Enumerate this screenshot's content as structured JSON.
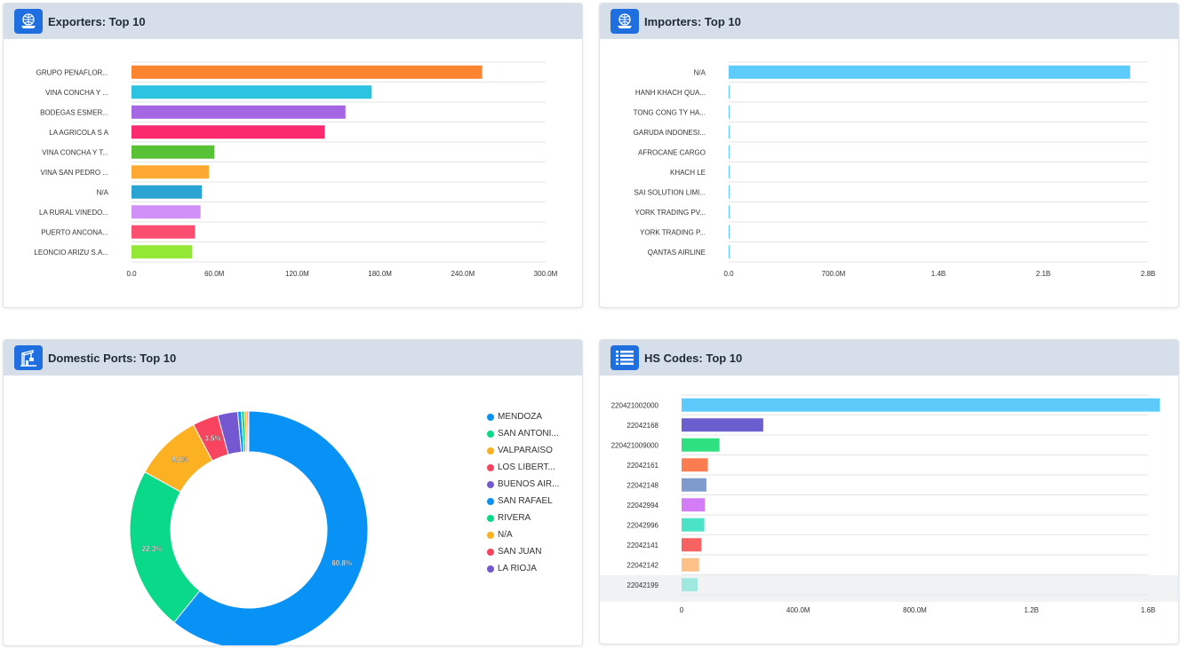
{
  "panels": {
    "exporters": {
      "title": "Exporters: Top 10"
    },
    "importers": {
      "title": "Importers: Top 10"
    },
    "ports": {
      "title": "Domestic Ports: Top 10"
    },
    "hs": {
      "title": "HS Codes: Top 10"
    }
  },
  "chart_data": [
    {
      "id": "exporters",
      "type": "bar",
      "orientation": "horizontal",
      "categories": [
        "GRUPO PENAFLOR...",
        "VINA CONCHA Y ...",
        "BODEGAS ESMER...",
        "LA AGRICOLA S A",
        "VINA CONCHA Y T...",
        "VINA SAN PEDRO ...",
        "N/A",
        "LA RURAL VINEDO...",
        "PUERTO ANCONA...",
        "LEONCIO ARIZU S.A..."
      ],
      "values": [
        254,
        174,
        155,
        140,
        60,
        56,
        51,
        50,
        46,
        44
      ],
      "colors": [
        "#fd8431",
        "#2bc3df",
        "#a566e3",
        "#fb2a6e",
        "#57c236",
        "#fda931",
        "#2ba4d3",
        "#d090f8",
        "#fb4e71",
        "#93e735"
      ],
      "xlim": [
        0,
        300
      ],
      "xticks": [
        "0.0",
        "60.0M",
        "120.0M",
        "180.0M",
        "240.0M",
        "300.0M"
      ],
      "unit": "M"
    },
    {
      "id": "importers",
      "type": "bar",
      "orientation": "horizontal",
      "categories": [
        "N/A",
        "HANH KHACH QUA...",
        "TONG CONG TY HA...",
        "GARUDA INDONESI...",
        "AFROCANE CARGO",
        "KHACH LE",
        "SAI SOLUTION LIMI...",
        "YORK TRADING PV...",
        "YORK TRADING P...",
        "QANTAS AIRLINE"
      ],
      "values": [
        2.68,
        0.002,
        0.002,
        0.002,
        0.002,
        0.002,
        0.001,
        0.001,
        0.001,
        0.001
      ],
      "colors": [
        "#5dcbfb",
        "#5dcbfb",
        "#5dcbfb",
        "#5dcbfb",
        "#5dcbfb",
        "#5dcbfb",
        "#5dcbfb",
        "#5dcbfb",
        "#5dcbfb",
        "#5dcbfb"
      ],
      "xlim": [
        0,
        2.8
      ],
      "xticks": [
        "0.0",
        "700.0M",
        "1.4B",
        "2.1B",
        "2.8B"
      ],
      "unit": "B"
    },
    {
      "id": "ports",
      "type": "pie",
      "donut": true,
      "labels": [
        "MENDOZA",
        "SAN ANTONI...",
        "VALPARAISO",
        "LOS LIBERT...",
        "BUENOS AIR...",
        "SAN RAFAEL",
        "RIVERA",
        "N/A",
        "SAN JUAN",
        "LA RIOJA"
      ],
      "values": [
        60.8,
        22.3,
        9.2,
        3.5,
        2.7,
        0.5,
        0.4,
        0.3,
        0.2,
        0.1
      ],
      "data_labels": [
        "60.8%",
        "22.3%",
        "9.2%",
        "3.5%",
        "",
        "",
        "",
        "",
        "",
        ""
      ],
      "colors": [
        "#0892f6",
        "#0bd98a",
        "#fcb123",
        "#f94460",
        "#7458d1",
        "#0892f6",
        "#0bd98a",
        "#fcb123",
        "#f94460",
        "#7458d1"
      ]
    },
    {
      "id": "hs",
      "type": "bar",
      "orientation": "horizontal",
      "categories": [
        "220421002000",
        "22042168",
        "220421009000",
        "22042161",
        "22042148",
        "22042994",
        "22042996",
        "22042141",
        "22042142",
        "22042199"
      ],
      "values": [
        1.64,
        0.28,
        0.13,
        0.09,
        0.085,
        0.08,
        0.078,
        0.068,
        0.06,
        0.055
      ],
      "colors": [
        "#5ccbfb",
        "#6b5fcf",
        "#2ee07f",
        "#fd7c50",
        "#7f9bce",
        "#d47cf5",
        "#4be3c8",
        "#f96262",
        "#fdc187",
        "#9ee8e0"
      ],
      "xlim": [
        0,
        1.6
      ],
      "xticks": [
        "0",
        "400.0M",
        "800.0M",
        "1.2B",
        "1.6B"
      ],
      "unit": "B"
    }
  ]
}
